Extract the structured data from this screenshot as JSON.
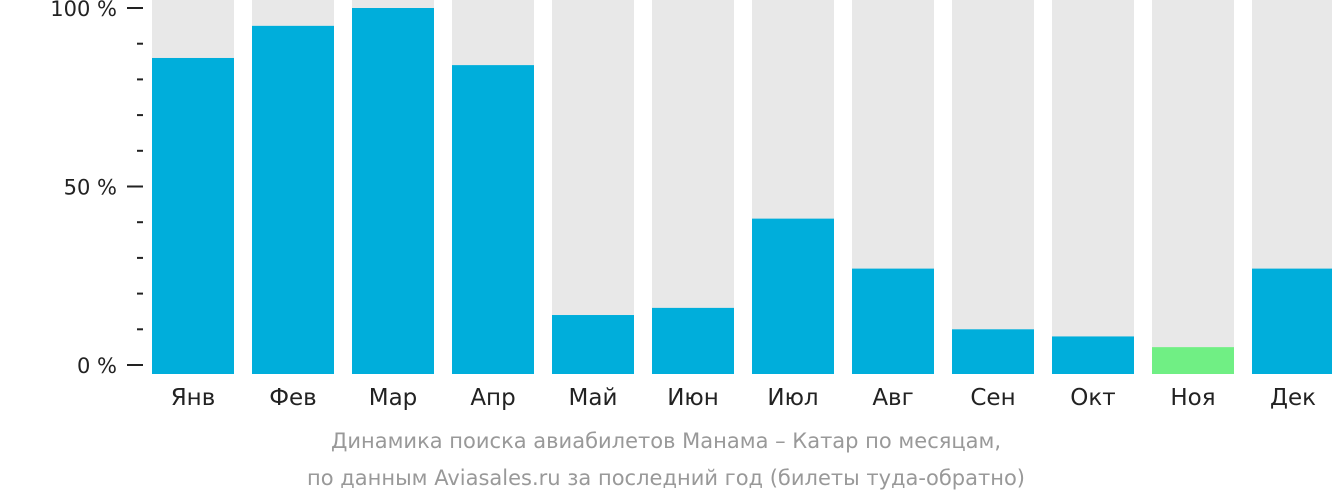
{
  "chart_data": {
    "type": "bar",
    "categories": [
      "Янв",
      "Фев",
      "Мар",
      "Апр",
      "Май",
      "Июн",
      "Июл",
      "Авг",
      "Сен",
      "Окт",
      "Ноя",
      "Дек"
    ],
    "values": [
      86,
      95,
      100,
      84,
      14,
      16,
      41,
      27,
      10,
      8,
      5,
      27
    ],
    "y_ticks": [
      "0 %",
      "50 %",
      "100 %"
    ],
    "ylim": [
      0,
      100
    ],
    "colors": {
      "bar": "#00aedb",
      "bar_min": "#70ef84",
      "track": "#e8e8e8",
      "axis": "#222222"
    }
  },
  "caption": {
    "line1": "Динамика поиска авиабилетов Манама – Катар по месяцам,",
    "line2": "по данным Aviasales.ru за последний год (билеты туда-обратно)"
  }
}
